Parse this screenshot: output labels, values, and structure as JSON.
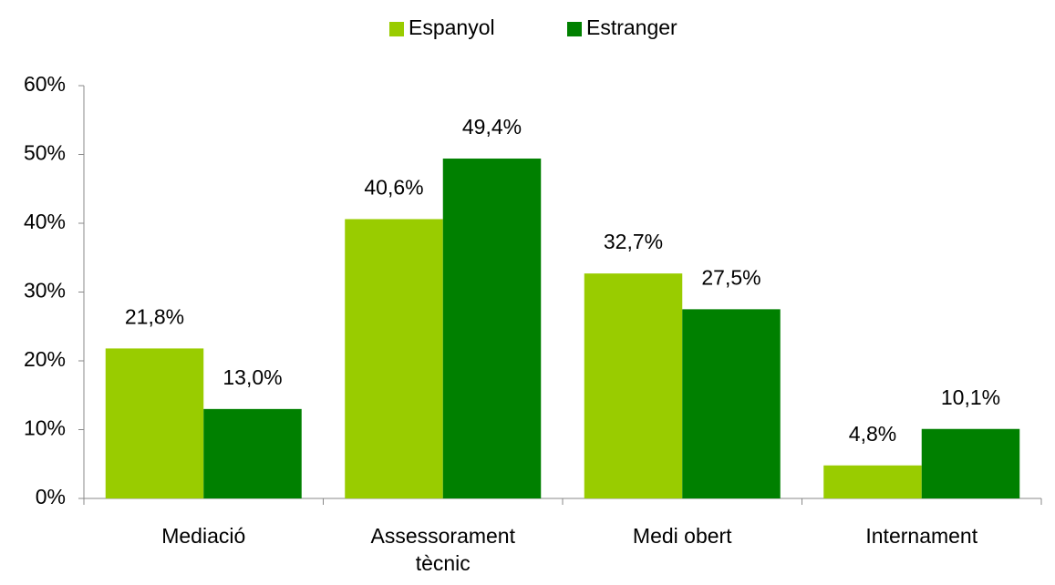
{
  "chart_data": {
    "type": "bar",
    "categories": [
      "Mediació",
      "Assessorament tècnic",
      "Medi obert",
      "Internament"
    ],
    "series": [
      {
        "name": "Espanyol",
        "color": "#99cc00",
        "values": [
          21.8,
          40.6,
          32.7,
          4.8
        ],
        "value_labels": [
          "21,8%",
          "40,6%",
          "32,7%",
          "4,8%"
        ]
      },
      {
        "name": "Estranger",
        "color": "#008000",
        "values": [
          13.0,
          49.4,
          27.5,
          10.1
        ],
        "value_labels": [
          "13,0%",
          "49,4%",
          "27,5%",
          "10,1%"
        ]
      }
    ],
    "ylim": [
      0,
      60
    ],
    "yticks": [
      {
        "value": 0,
        "label": "0%"
      },
      {
        "value": 10,
        "label": "10%"
      },
      {
        "value": 20,
        "label": "20%"
      },
      {
        "value": 30,
        "label": "30%"
      },
      {
        "value": 40,
        "label": "40%"
      },
      {
        "value": 50,
        "label": "50%"
      },
      {
        "value": 60,
        "label": "60%"
      }
    ],
    "grid": false,
    "legend": "top"
  }
}
